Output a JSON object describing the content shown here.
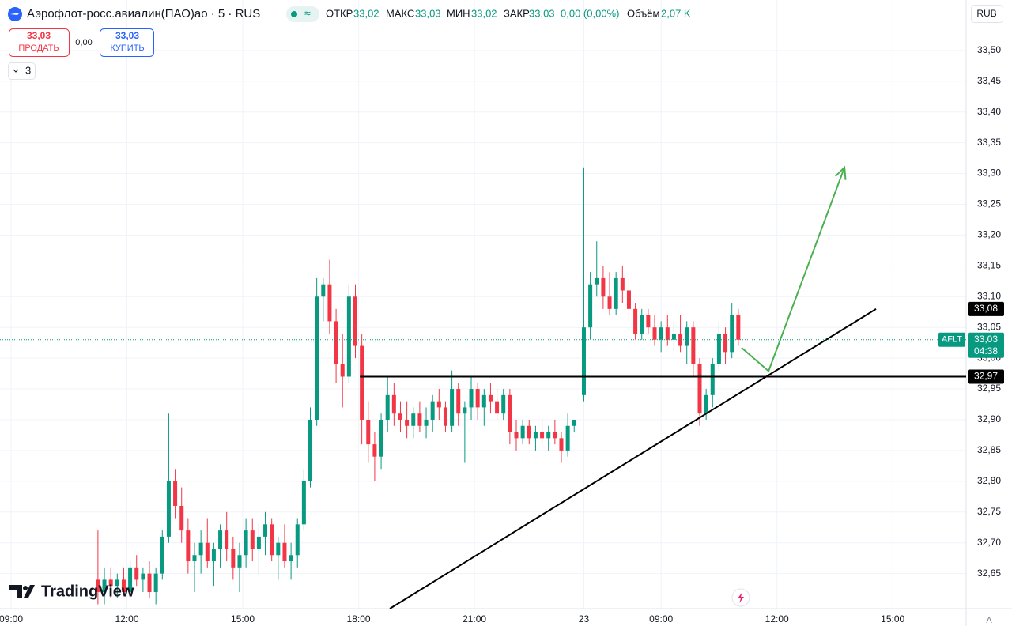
{
  "header": {
    "symbol": "Аэрофлот-росс.авиалин(ПАО)ао · 5 · RUS",
    "approx": "≈",
    "open_label": "ОТКР",
    "open": "33,02",
    "high_label": "МАКС",
    "high": "33,03",
    "low_label": "МИН",
    "low": "33,02",
    "close_label": "ЗАКР",
    "close": "33,03",
    "change": "0,00 (0,00%)",
    "volume_label": "Объём",
    "volume": "2,07 K",
    "sell_price": "33,03",
    "sell": "ПРОДАТЬ",
    "spread": "0,00",
    "buy_price": "33,03",
    "buy": "КУПИТЬ",
    "indicators": "3",
    "currency": "RUB",
    "scale_mode": "A",
    "brand": "TradingView"
  },
  "chart_data": {
    "type": "candlestick",
    "up_color": "#089981",
    "down_color": "#f23645",
    "grid": true,
    "xlim": [
      -3.44,
      296.8
    ],
    "ylim": [
      32.593,
      33.582
    ],
    "xticks": [
      {
        "value": 0,
        "label": "09:00"
      },
      {
        "value": 36,
        "label": "12:00"
      },
      {
        "value": 72,
        "label": "15:00"
      },
      {
        "value": 108,
        "label": "18:00"
      },
      {
        "value": 144,
        "label": "21:00"
      },
      {
        "value": 178,
        "label": "23"
      },
      {
        "value": 202,
        "label": "09:00"
      },
      {
        "value": 238,
        "label": "12:00"
      },
      {
        "value": 274,
        "label": "15:00"
      }
    ],
    "yticks": [
      {
        "value": 33.5,
        "label": "33,50"
      },
      {
        "value": 33.45,
        "label": "33,45"
      },
      {
        "value": 33.4,
        "label": "33,40"
      },
      {
        "value": 33.35,
        "label": "33,35"
      },
      {
        "value": 33.3,
        "label": "33,30"
      },
      {
        "value": 33.25,
        "label": "33,25"
      },
      {
        "value": 33.2,
        "label": "33,20"
      },
      {
        "value": 33.15,
        "label": "33,15"
      },
      {
        "value": 33.1,
        "label": "33,10"
      },
      {
        "value": 33.05,
        "label": "33,05"
      },
      {
        "value": 33.0,
        "label": "33,00"
      },
      {
        "value": 32.95,
        "label": "32,95"
      },
      {
        "value": 32.9,
        "label": "32,90"
      },
      {
        "value": 32.85,
        "label": "32,85"
      },
      {
        "value": 32.8,
        "label": "32,80"
      },
      {
        "value": 32.75,
        "label": "32,75"
      },
      {
        "value": 32.7,
        "label": "32,70"
      },
      {
        "value": 32.65,
        "label": "32,65"
      }
    ],
    "x": [
      27,
      29,
      31,
      33,
      35,
      37,
      39,
      41,
      43,
      45,
      47,
      49,
      51,
      53,
      55,
      57,
      59,
      61,
      63,
      65,
      67,
      69,
      71,
      73,
      75,
      77,
      79,
      81,
      83,
      85,
      87,
      89,
      91,
      93,
      95,
      97,
      99,
      101,
      103,
      105,
      107,
      109,
      111,
      113,
      115,
      117,
      119,
      121,
      123,
      125,
      127,
      129,
      131,
      133,
      135,
      137,
      139,
      141,
      143,
      145,
      147,
      149,
      151,
      153,
      155,
      157,
      159,
      161,
      163,
      165,
      167,
      169,
      171,
      173,
      175,
      178,
      180,
      182,
      184,
      186,
      188,
      190,
      192,
      194,
      196,
      198,
      200,
      202,
      204,
      206,
      208,
      210,
      212,
      214,
      216,
      218,
      220,
      222,
      224,
      226
    ],
    "ohlc": [
      [
        32.64,
        32.72,
        32.6,
        32.62
      ],
      [
        32.62,
        32.66,
        32.6,
        32.64
      ],
      [
        32.64,
        32.66,
        32.61,
        32.63
      ],
      [
        32.63,
        32.65,
        32.61,
        32.64
      ],
      [
        32.64,
        32.66,
        32.62,
        32.62
      ],
      [
        32.62,
        32.67,
        32.61,
        32.66
      ],
      [
        32.66,
        32.68,
        32.63,
        32.64
      ],
      [
        32.64,
        32.66,
        32.62,
        32.65
      ],
      [
        32.65,
        32.67,
        32.61,
        32.62
      ],
      [
        32.62,
        32.66,
        32.6,
        32.65
      ],
      [
        32.65,
        32.72,
        32.64,
        32.71
      ],
      [
        32.71,
        32.91,
        32.7,
        32.8
      ],
      [
        32.8,
        32.82,
        32.74,
        32.76
      ],
      [
        32.76,
        32.79,
        32.7,
        32.72
      ],
      [
        32.72,
        32.74,
        32.65,
        32.67
      ],
      [
        32.67,
        32.7,
        32.62,
        32.68
      ],
      [
        32.68,
        32.72,
        32.65,
        32.7
      ],
      [
        32.7,
        32.74,
        32.66,
        32.67
      ],
      [
        32.67,
        32.7,
        32.63,
        32.69
      ],
      [
        32.69,
        32.73,
        32.66,
        32.72
      ],
      [
        32.72,
        32.75,
        32.67,
        32.69
      ],
      [
        32.69,
        32.71,
        32.64,
        32.66
      ],
      [
        32.66,
        32.7,
        32.62,
        32.68
      ],
      [
        32.68,
        32.74,
        32.66,
        32.72
      ],
      [
        32.72,
        32.74,
        32.67,
        32.69
      ],
      [
        32.69,
        32.73,
        32.65,
        32.71
      ],
      [
        32.71,
        32.75,
        32.68,
        32.73
      ],
      [
        32.73,
        32.74,
        32.67,
        32.68
      ],
      [
        32.68,
        32.71,
        32.64,
        32.7
      ],
      [
        32.7,
        32.73,
        32.66,
        32.67
      ],
      [
        32.67,
        32.7,
        32.64,
        32.68
      ],
      [
        32.68,
        32.74,
        32.66,
        32.73
      ],
      [
        32.73,
        32.82,
        32.72,
        32.8
      ],
      [
        32.8,
        32.92,
        32.79,
        32.9
      ],
      [
        32.9,
        33.13,
        32.89,
        33.1
      ],
      [
        33.1,
        33.13,
        33.06,
        33.12
      ],
      [
        33.12,
        33.16,
        33.04,
        33.06
      ],
      [
        33.06,
        33.08,
        32.96,
        32.99
      ],
      [
        32.99,
        33.04,
        32.92,
        32.97
      ],
      [
        32.97,
        33.12,
        32.96,
        33.1
      ],
      [
        33.1,
        33.12,
        33.0,
        33.02
      ],
      [
        33.02,
        33.04,
        32.86,
        32.9
      ],
      [
        32.9,
        32.93,
        32.83,
        32.86
      ],
      [
        32.86,
        32.88,
        32.8,
        32.84
      ],
      [
        32.84,
        32.91,
        32.82,
        32.9
      ],
      [
        32.9,
        32.97,
        32.88,
        32.94
      ],
      [
        32.94,
        32.96,
        32.89,
        32.91
      ],
      [
        32.91,
        32.93,
        32.88,
        32.9
      ],
      [
        32.9,
        32.93,
        32.87,
        32.89
      ],
      [
        32.89,
        32.92,
        32.87,
        32.91
      ],
      [
        32.91,
        32.93,
        32.88,
        32.89
      ],
      [
        32.89,
        32.92,
        32.87,
        32.9
      ],
      [
        32.9,
        32.94,
        32.88,
        32.93
      ],
      [
        32.93,
        32.95,
        32.9,
        32.92
      ],
      [
        32.92,
        32.93,
        32.88,
        32.89
      ],
      [
        32.89,
        32.98,
        32.88,
        32.95
      ],
      [
        32.95,
        32.96,
        32.89,
        32.91
      ],
      [
        32.91,
        32.93,
        32.83,
        32.92
      ],
      [
        32.92,
        32.97,
        32.9,
        32.95
      ],
      [
        32.95,
        32.96,
        32.9,
        32.92
      ],
      [
        32.92,
        32.95,
        32.89,
        32.94
      ],
      [
        32.94,
        32.96,
        32.91,
        32.93
      ],
      [
        32.93,
        32.95,
        32.9,
        32.91
      ],
      [
        32.91,
        32.95,
        32.9,
        32.94
      ],
      [
        32.94,
        32.95,
        32.86,
        32.88
      ],
      [
        32.88,
        32.9,
        32.85,
        32.87
      ],
      [
        32.87,
        32.9,
        32.86,
        32.89
      ],
      [
        32.89,
        32.9,
        32.86,
        32.87
      ],
      [
        32.87,
        32.89,
        32.85,
        32.88
      ],
      [
        32.88,
        32.9,
        32.86,
        32.87
      ],
      [
        32.87,
        32.89,
        32.85,
        32.88
      ],
      [
        32.88,
        32.9,
        32.86,
        32.87
      ],
      [
        32.87,
        32.88,
        32.83,
        32.85
      ],
      [
        32.85,
        32.91,
        32.84,
        32.89
      ],
      [
        32.89,
        32.9,
        32.88,
        32.9
      ],
      [
        32.94,
        33.31,
        32.93,
        33.05
      ],
      [
        33.05,
        33.14,
        33.03,
        33.12
      ],
      [
        33.12,
        33.19,
        33.1,
        33.13
      ],
      [
        33.13,
        33.15,
        33.08,
        33.1
      ],
      [
        33.1,
        33.14,
        33.07,
        33.08
      ],
      [
        33.08,
        33.14,
        33.07,
        33.13
      ],
      [
        33.13,
        33.15,
        33.09,
        33.11
      ],
      [
        33.11,
        33.13,
        33.06,
        33.08
      ],
      [
        33.08,
        33.09,
        33.03,
        33.04
      ],
      [
        33.04,
        33.08,
        33.03,
        33.07
      ],
      [
        33.07,
        33.08,
        33.04,
        33.05
      ],
      [
        33.05,
        33.07,
        33.02,
        33.03
      ],
      [
        33.03,
        33.06,
        33.01,
        33.05
      ],
      [
        33.05,
        33.07,
        33.02,
        33.03
      ],
      [
        33.03,
        33.06,
        33.01,
        33.04
      ],
      [
        33.04,
        33.07,
        33.01,
        33.02
      ],
      [
        33.02,
        33.06,
        32.99,
        33.05
      ],
      [
        33.05,
        33.06,
        32.97,
        32.99
      ],
      [
        32.99,
        33.0,
        32.89,
        32.91
      ],
      [
        32.91,
        32.95,
        32.9,
        32.94
      ],
      [
        32.94,
        33.0,
        32.92,
        32.99
      ],
      [
        32.99,
        33.06,
        32.98,
        33.04
      ],
      [
        33.04,
        33.05,
        32.99,
        33.01
      ],
      [
        33.01,
        33.09,
        33.0,
        33.07
      ],
      [
        33.07,
        33.08,
        33.02,
        33.03
      ]
    ],
    "horizontal_line": {
      "x": 108.4,
      "value": 32.97,
      "label": "32,97"
    },
    "trend_line": {
      "x": [
        117.7,
        268.8
      ],
      "y": [
        32.593,
        33.08
      ],
      "label": "33,08"
    },
    "arrow": {
      "x": [
        227,
        235.4,
        259
      ],
      "y": [
        33.017,
        32.979,
        33.31
      ],
      "color": "#4caf50"
    },
    "last_price": {
      "value": 33.03,
      "label": "33,03",
      "symbol": "AFLT",
      "countdown": "04:38"
    }
  }
}
